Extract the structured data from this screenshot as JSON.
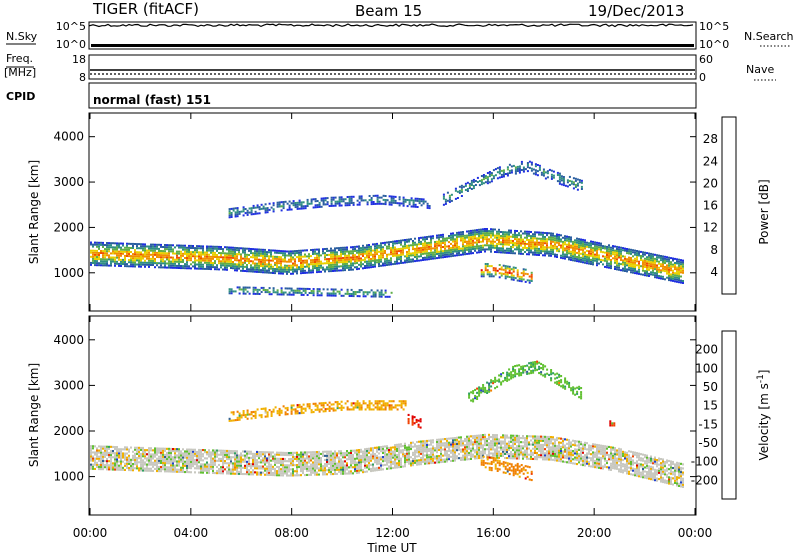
{
  "header": {
    "site": "TIGER (fitACF)",
    "beam": "Beam 15",
    "date": "19/Dec/2013"
  },
  "status_panels": {
    "nsky": {
      "label": "N.Sky",
      "ticks": [
        "10^5",
        "10^0"
      ]
    },
    "nsearch": {
      "label": "N.Search",
      "ticks": [
        "10^5",
        "10^0"
      ]
    },
    "freq": {
      "label_line1": "Freq.",
      "label_line2": "[MHz]",
      "ticks": [
        "18",
        "8"
      ]
    },
    "nave": {
      "label": "Nave",
      "ticks": [
        "60",
        "0"
      ]
    },
    "cpid": {
      "label": "CPID",
      "value": "normal (fast) 151"
    }
  },
  "colors": {
    "power_scale": [
      "#1f2fe0",
      "#2a5ea0",
      "#2f8f82",
      "#5fae48",
      "#e8d000",
      "#f09000",
      "#f05000",
      "#f00000"
    ],
    "velocity_scale": [
      "#e00000",
      "#f04000",
      "#f08000",
      "#f0b000",
      "#c8c8c0",
      "#c8c8c0",
      "#60c030",
      "#30a060",
      "#306090",
      "#2040d0"
    ]
  },
  "chart_data": [
    {
      "type": "heatmap",
      "name": "power",
      "title": "",
      "xlabel": "",
      "ylabel": "Slant Range [km]",
      "x_ticks": [
        "00:00",
        "04:00",
        "08:00",
        "12:00",
        "16:00",
        "20:00",
        "00:00"
      ],
      "y_ticks": [
        1000,
        2000,
        3000,
        4000
      ],
      "xlim_hours": [
        0,
        24
      ],
      "ylim_km": [
        180,
        4500
      ],
      "colorbar": {
        "label": "Power [dB]",
        "ticks": [
          4,
          8,
          12,
          16,
          20,
          24,
          28
        ],
        "range": [
          0,
          32
        ]
      },
      "echo_bands": [
        {
          "time_start_h": 0,
          "time_end_h": 23.5,
          "range_center_km": [
            1400,
            1350,
            1300,
            1200,
            1300,
            1500,
            1700,
            1600,
            1300,
            1000
          ],
          "width_km": 500,
          "peak_db": 24
        },
        {
          "time_start_h": 15.5,
          "time_end_h": 17.5,
          "range_center_km": [
            1050,
            1050,
            1000,
            950,
            900
          ],
          "width_km": 300,
          "peak_db": 30
        },
        {
          "time_start_h": 5.5,
          "time_end_h": 12,
          "range_center_km": [
            600,
            580,
            560,
            540,
            520
          ],
          "width_km": 150,
          "peak_db": 15
        },
        {
          "time_start_h": 14,
          "time_end_h": 19.5,
          "range_center_km": [
            2600,
            2900,
            3200,
            3350,
            3100,
            2900
          ],
          "width_km": 250,
          "peak_db": 12
        },
        {
          "time_start_h": 5.5,
          "time_end_h": 13.5,
          "range_center_km": [
            2300,
            2450,
            2550,
            2600,
            2500
          ],
          "width_km": 200,
          "peak_db": 10
        }
      ]
    },
    {
      "type": "heatmap",
      "name": "velocity",
      "title": "",
      "xlabel": "Time UT",
      "ylabel": "Slant Range [km]",
      "x_ticks": [
        "00:00",
        "04:00",
        "08:00",
        "12:00",
        "16:00",
        "20:00",
        "00:00"
      ],
      "y_ticks": [
        1000,
        2000,
        3000,
        4000
      ],
      "xlim_hours": [
        0,
        24
      ],
      "ylim_km": [
        180,
        4500
      ],
      "colorbar": {
        "label": "Velocity [m s^-1]",
        "ticks": [
          200,
          100,
          50,
          15,
          -15,
          -50,
          -100,
          -200
        ],
        "range": [
          -300,
          300
        ]
      },
      "echo_bands": [
        {
          "time_start_h": 0,
          "time_end_h": 23.5,
          "range_center_km": [
            1400,
            1350,
            1300,
            1250,
            1300,
            1500,
            1650,
            1600,
            1350,
            1000
          ],
          "width_km": 500,
          "velocity": 0
        },
        {
          "time_start_h": 15.5,
          "time_end_h": 17.5,
          "range_center_km": [
            1300,
            1250,
            1150,
            1050
          ],
          "width_km": 300,
          "velocity": -60
        },
        {
          "time_start_h": 12.6,
          "time_end_h": 13.1,
          "range_center_km": [
            2250,
            2200,
            2150
          ],
          "width_km": 200,
          "velocity": -200
        },
        {
          "time_start_h": 20.6,
          "time_end_h": 20.8,
          "range_center_km": [
            2150,
            2150
          ],
          "width_km": 100,
          "velocity": -200
        },
        {
          "time_start_h": 15,
          "time_end_h": 19.5,
          "range_center_km": [
            2700,
            3000,
            3300,
            3400,
            3100,
            2800
          ],
          "width_km": 250,
          "velocity": 40
        },
        {
          "time_start_h": 5.5,
          "time_end_h": 12.5,
          "range_center_km": [
            2300,
            2450,
            2550,
            2550
          ],
          "width_km": 200,
          "velocity": -40
        }
      ]
    }
  ]
}
